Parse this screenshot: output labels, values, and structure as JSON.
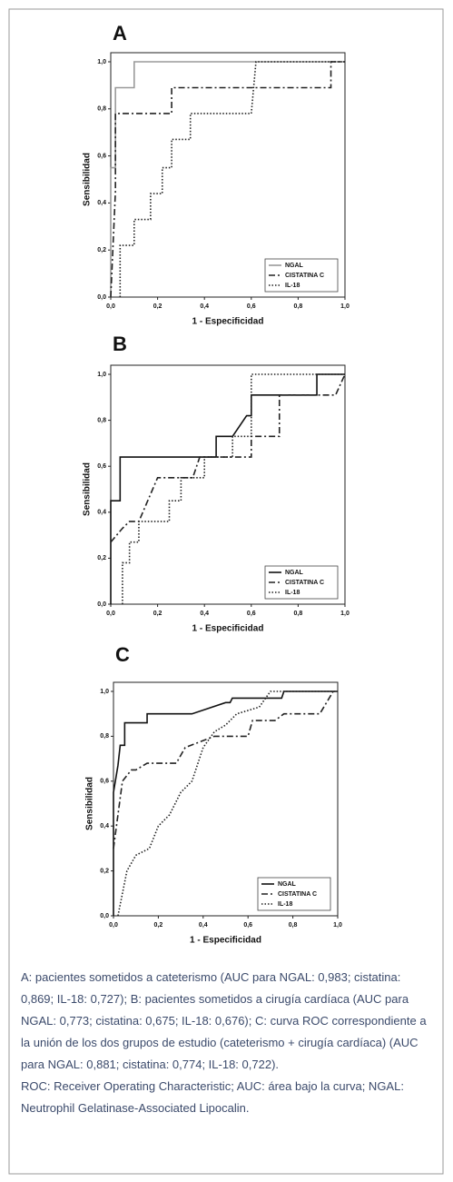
{
  "chart_data": [
    {
      "type": "line",
      "title": "A",
      "xlabel": "1 - Especificidad",
      "ylabel": "Sensibilidad",
      "xlim": [
        0,
        1
      ],
      "ylim": [
        0,
        1
      ],
      "xticks": [
        {
          "value": 0,
          "label": "0,0"
        },
        {
          "value": 0.2,
          "label": "0,2"
        },
        {
          "value": 0.4,
          "label": "0,4"
        },
        {
          "value": 0.6,
          "label": "0,6"
        },
        {
          "value": 0.8,
          "label": "0,8"
        },
        {
          "value": 1,
          "label": "1,0"
        }
      ],
      "yticks": [
        {
          "value": 0,
          "label": "0,0"
        },
        {
          "value": 0.2,
          "label": "0,2"
        },
        {
          "value": 0.4,
          "label": "0,4"
        },
        {
          "value": 0.6,
          "label": "0,6"
        },
        {
          "value": 0.8,
          "label": "0,8"
        },
        {
          "value": 1,
          "label": "1,0"
        }
      ],
      "series": [
        {
          "name": "NGAL",
          "color": "#9a9a9a",
          "dash": "solid",
          "x": [
            0,
            0,
            0.02,
            0.02,
            0.1,
            0.1,
            1
          ],
          "values": [
            0,
            0.55,
            0.55,
            0.89,
            0.89,
            1,
            1
          ]
        },
        {
          "name": "CISTATINA C",
          "color": "#222222",
          "dash": "dashed",
          "x": [
            0,
            0.02,
            0.02,
            0.26,
            0.26,
            0.94,
            0.94,
            1
          ],
          "values": [
            0,
            0.45,
            0.78,
            0.78,
            0.89,
            0.89,
            1,
            1
          ]
        },
        {
          "name": "IL-18",
          "color": "#222222",
          "dash": "dotted",
          "x": [
            0.04,
            0.04,
            0.1,
            0.1,
            0.17,
            0.17,
            0.22,
            0.22,
            0.26,
            0.26,
            0.34,
            0.34,
            0.6,
            0.62,
            1
          ],
          "values": [
            0,
            0.22,
            0.22,
            0.33,
            0.33,
            0.44,
            0.44,
            0.55,
            0.55,
            0.67,
            0.67,
            0.78,
            0.78,
            1,
            1
          ]
        }
      ]
    },
    {
      "type": "line",
      "title": "B",
      "xlabel": "1 - Especificidad",
      "ylabel": "Sensibilidad",
      "xlim": [
        0,
        1
      ],
      "ylim": [
        0,
        1
      ],
      "xticks": [
        {
          "value": 0,
          "label": "0,0"
        },
        {
          "value": 0.2,
          "label": "0,2"
        },
        {
          "value": 0.4,
          "label": "0,4"
        },
        {
          "value": 0.6,
          "label": "0,6"
        },
        {
          "value": 0.8,
          "label": "0,8"
        },
        {
          "value": 1,
          "label": "1,0"
        }
      ],
      "yticks": [
        {
          "value": 0,
          "label": "0,0"
        },
        {
          "value": 0.2,
          "label": "0,2"
        },
        {
          "value": 0.4,
          "label": "0,4"
        },
        {
          "value": 0.6,
          "label": "0,6"
        },
        {
          "value": 0.8,
          "label": "0,8"
        },
        {
          "value": 1,
          "label": "1,0"
        }
      ],
      "series": [
        {
          "name": "NGAL",
          "color": "#111111",
          "dash": "solid",
          "x": [
            0,
            0,
            0.04,
            0.04,
            0.45,
            0.45,
            0.52,
            0.58,
            0.6,
            0.6,
            0.88,
            0.88,
            1
          ],
          "values": [
            0,
            0.45,
            0.45,
            0.64,
            0.64,
            0.73,
            0.73,
            0.82,
            0.82,
            0.91,
            0.91,
            1,
            1
          ]
        },
        {
          "name": "CISTATINA C",
          "color": "#222222",
          "dash": "dashed",
          "x": [
            0,
            0.05,
            0.08,
            0.12,
            0.2,
            0.35,
            0.38,
            0.6,
            0.6,
            0.72,
            0.72,
            0.96,
            1
          ],
          "values": [
            0.27,
            0.33,
            0.36,
            0.36,
            0.55,
            0.55,
            0.64,
            0.64,
            0.73,
            0.73,
            0.91,
            0.91,
            1
          ]
        },
        {
          "name": "IL-18",
          "color": "#222222",
          "dash": "dotted",
          "x": [
            0.05,
            0.05,
            0.08,
            0.08,
            0.12,
            0.12,
            0.25,
            0.25,
            0.3,
            0.3,
            0.4,
            0.4,
            0.52,
            0.52,
            0.6,
            0.6,
            1
          ],
          "values": [
            0,
            0.18,
            0.18,
            0.27,
            0.27,
            0.36,
            0.36,
            0.45,
            0.45,
            0.55,
            0.55,
            0.64,
            0.64,
            0.73,
            0.73,
            1,
            1
          ]
        }
      ]
    },
    {
      "type": "line",
      "title": "C",
      "xlabel": "1 - Especificidad",
      "ylabel": "Sensibilidad",
      "xlim": [
        0,
        1
      ],
      "ylim": [
        0,
        1
      ],
      "xticks": [
        {
          "value": 0,
          "label": "0,0"
        },
        {
          "value": 0.2,
          "label": "0,2"
        },
        {
          "value": 0.4,
          "label": "0,4"
        },
        {
          "value": 0.6,
          "label": "0,6"
        },
        {
          "value": 0.8,
          "label": "0,8"
        },
        {
          "value": 1,
          "label": "1,0"
        }
      ],
      "yticks": [
        {
          "value": 0,
          "label": "0,0"
        },
        {
          "value": 0.2,
          "label": "0,2"
        },
        {
          "value": 0.4,
          "label": "0,4"
        },
        {
          "value": 0.6,
          "label": "0,6"
        },
        {
          "value": 0.8,
          "label": "0,8"
        },
        {
          "value": 1,
          "label": "1,0"
        }
      ],
      "series": [
        {
          "name": "NGAL",
          "color": "#111111",
          "dash": "solid",
          "x": [
            0,
            0,
            0.02,
            0.03,
            0.05,
            0.05,
            0.15,
            0.15,
            0.35,
            0.5,
            0.52,
            0.53,
            0.75,
            0.76,
            1
          ],
          "values": [
            0,
            0.55,
            0.67,
            0.76,
            0.76,
            0.86,
            0.86,
            0.9,
            0.9,
            0.95,
            0.95,
            0.97,
            0.97,
            1,
            1
          ]
        },
        {
          "name": "CISTATINA C",
          "color": "#222222",
          "dash": "dashed",
          "x": [
            0,
            0.02,
            0.04,
            0.08,
            0.1,
            0.15,
            0.28,
            0.32,
            0.45,
            0.6,
            0.62,
            0.72,
            0.76,
            0.92,
            0.95,
            0.98
          ],
          "values": [
            0.3,
            0.45,
            0.6,
            0.65,
            0.65,
            0.68,
            0.68,
            0.75,
            0.8,
            0.8,
            0.87,
            0.87,
            0.9,
            0.9,
            0.95,
            1
          ]
        },
        {
          "name": "IL-18",
          "color": "#222222",
          "dash": "dotted",
          "x": [
            0.02,
            0.04,
            0.06,
            0.1,
            0.16,
            0.2,
            0.25,
            0.3,
            0.35,
            0.4,
            0.45,
            0.5,
            0.55,
            0.65,
            0.7,
            1
          ],
          "values": [
            0,
            0.1,
            0.2,
            0.27,
            0.3,
            0.4,
            0.45,
            0.55,
            0.6,
            0.75,
            0.82,
            0.85,
            0.9,
            0.93,
            1,
            1
          ]
        }
      ]
    }
  ],
  "caption": {
    "paragraphs": [
      "A: pacientes sometidos a cateterismo (AUC para NGAL: 0,983; cistatina: 0,869; IL-18: 0,727); B: pacientes sometidos a cirugía cardíaca (AUC para NGAL: 0,773; cistatina: 0,675; IL-18: 0,676); C: curva ROC correspondiente a la unión de los dos grupos de estudio (cateterismo + cirugía cardíaca) (AUC para NGAL: 0,881; cistatina: 0,774; IL-18: 0,722).",
      "ROC: Receiver Operating Characteristic; AUC: área bajo la curva; NGAL: Neutrophil Gelatinase-Associated Lipocalin."
    ]
  }
}
